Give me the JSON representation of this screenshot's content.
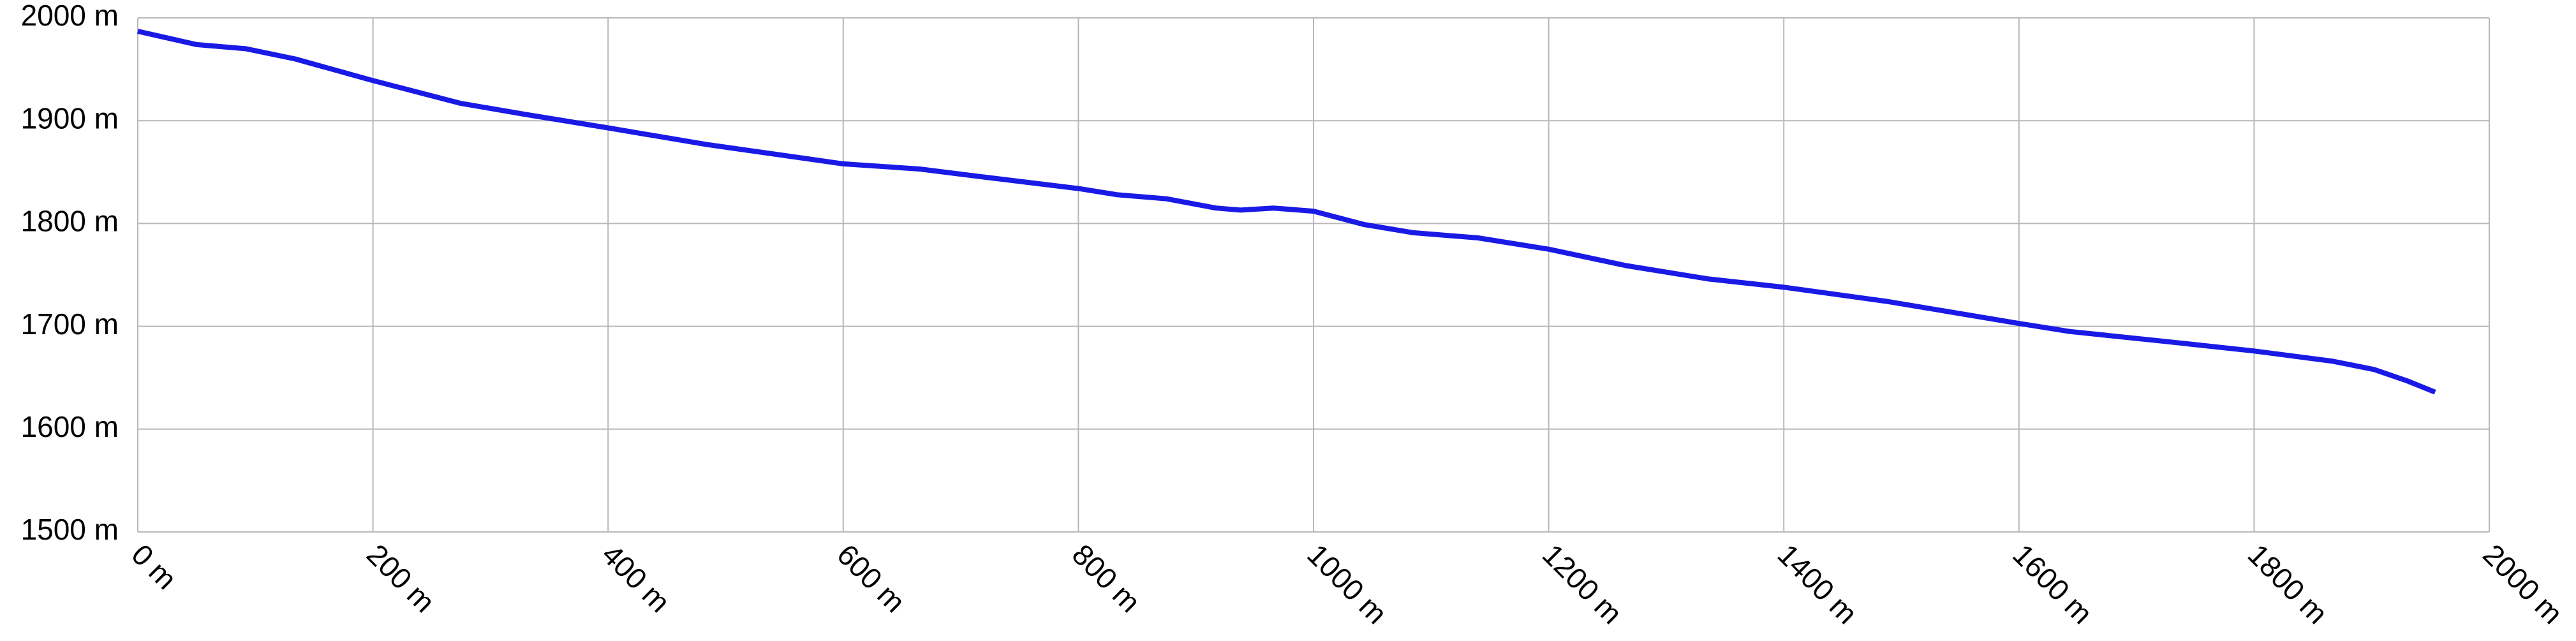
{
  "chart_data": {
    "type": "line",
    "color": "#1a1ae6",
    "grid": true,
    "x": [
      0,
      50,
      92,
      134,
      200,
      274,
      330,
      400,
      483,
      600,
      665,
      721,
      800,
      833,
      875,
      917,
      938,
      966,
      1000,
      1043,
      1085,
      1140,
      1200,
      1266,
      1336,
      1400,
      1489,
      1599,
      1643,
      1727,
      1800,
      1867,
      1902,
      1930,
      1954
    ],
    "values": [
      1987,
      1974,
      1970,
      1960,
      1939,
      1917,
      1906,
      1893,
      1877,
      1858,
      1853,
      1845,
      1834,
      1828,
      1824,
      1815,
      1813,
      1815,
      1812,
      1799,
      1791,
      1786,
      1775,
      1759,
      1746,
      1738,
      1724,
      1703,
      1695,
      1685,
      1676,
      1666,
      1658,
      1647,
      1636
    ],
    "xlim": [
      0,
      2000
    ],
    "ylim": [
      1500,
      2000
    ],
    "xticks": [
      {
        "value": 0,
        "label": "0 m"
      },
      {
        "value": 200,
        "label": "200 m"
      },
      {
        "value": 400,
        "label": "400 m"
      },
      {
        "value": 600,
        "label": "600 m"
      },
      {
        "value": 800,
        "label": "800 m"
      },
      {
        "value": 1000,
        "label": "1000 m"
      },
      {
        "value": 1200,
        "label": "1200 m"
      },
      {
        "value": 1400,
        "label": "1400 m"
      },
      {
        "value": 1600,
        "label": "1600 m"
      },
      {
        "value": 1800,
        "label": "1800 m"
      },
      {
        "value": 2000,
        "label": "2000 m"
      }
    ],
    "yticks": [
      {
        "value": 1500,
        "label": "1500 m"
      },
      {
        "value": 1600,
        "label": "1600 m"
      },
      {
        "value": 1700,
        "label": "1700 m"
      },
      {
        "value": 1800,
        "label": "1800 m"
      },
      {
        "value": 1900,
        "label": "1900 m"
      },
      {
        "value": 2000,
        "label": "2000 m"
      }
    ]
  }
}
